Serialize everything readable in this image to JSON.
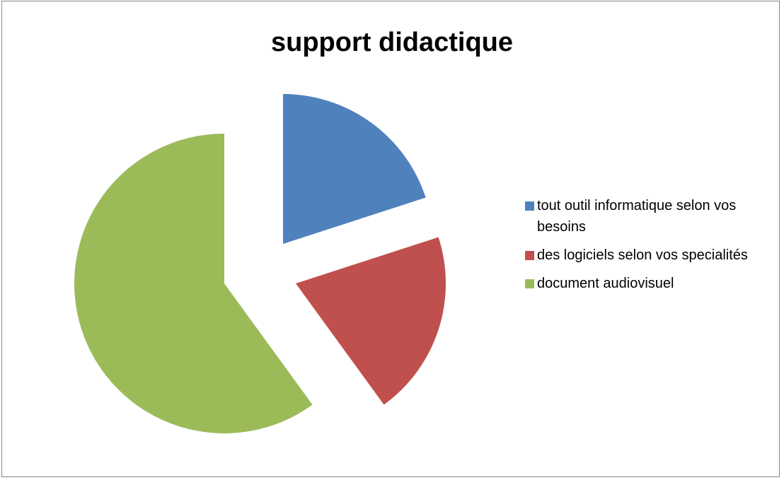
{
  "chart_data": {
    "type": "pie",
    "title": "support didactique",
    "legend_position": "right",
    "exploded": true,
    "slices": [
      {
        "label": "tout outil informatique selon vos besoins",
        "value": 20,
        "color": "#4f81bd"
      },
      {
        "label": "des logiciels selon vos specialités",
        "value": 20,
        "color": "#c0504d"
      },
      {
        "label": "document audiovisuel",
        "value": 60,
        "color": "#9bbb59"
      }
    ]
  }
}
